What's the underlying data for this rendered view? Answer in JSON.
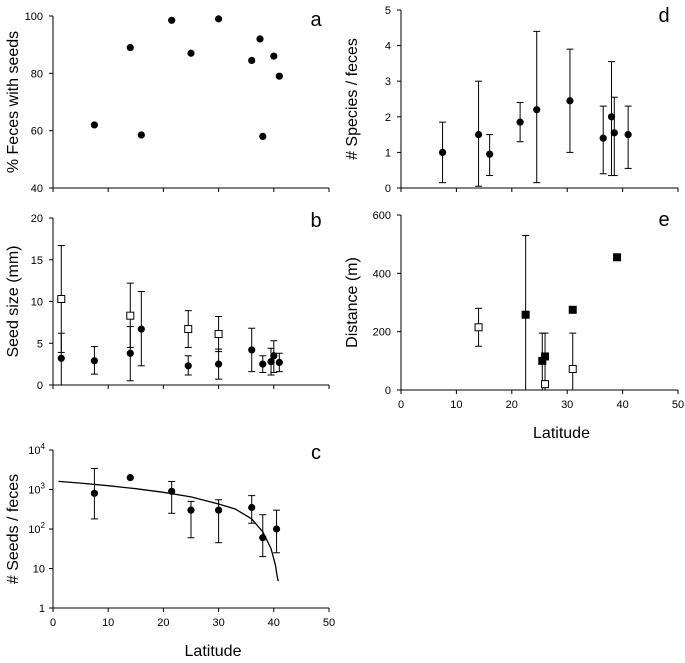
{
  "chart_data": [
    {
      "panel": "a",
      "type": "scatter",
      "ylabel": "% Feces with seeds",
      "xlim": [
        0,
        50
      ],
      "ylim": [
        40,
        100
      ],
      "y_ticks": [
        40,
        60,
        80,
        100
      ],
      "x_ticks": [],
      "points": [
        {
          "x": 7.5,
          "y": 62
        },
        {
          "x": 14,
          "y": 89
        },
        {
          "x": 16,
          "y": 58.5
        },
        {
          "x": 21.5,
          "y": 98.5
        },
        {
          "x": 25,
          "y": 87
        },
        {
          "x": 30,
          "y": 99
        },
        {
          "x": 36,
          "y": 84.5
        },
        {
          "x": 37.5,
          "y": 92
        },
        {
          "x": 38,
          "y": 58
        },
        {
          "x": 40,
          "y": 86
        },
        {
          "x": 41,
          "y": 79
        }
      ]
    },
    {
      "panel": "b",
      "type": "scatter",
      "ylabel": "Seed size (mm)",
      "xlim": [
        0,
        50
      ],
      "ylim": [
        0,
        20
      ],
      "y_ticks": [
        0,
        5,
        10,
        15,
        20
      ],
      "x_ticks": [],
      "series": [
        {
          "name": "filled",
          "marker": "circle",
          "points": [
            {
              "x": 1.5,
              "y": 3.2,
              "lo": 0,
              "hi": 6.2
            },
            {
              "x": 7.5,
              "y": 2.9,
              "lo": 1.3,
              "hi": 4.6
            },
            {
              "x": 14,
              "y": 3.8,
              "lo": 0.5,
              "hi": 7.0
            },
            {
              "x": 16,
              "y": 6.7,
              "lo": 2.3,
              "hi": 11.2
            },
            {
              "x": 24.5,
              "y": 2.3,
              "lo": 1.2,
              "hi": 3.5
            },
            {
              "x": 30,
              "y": 2.5,
              "lo": 0.7,
              "hi": 4.3
            },
            {
              "x": 36,
              "y": 4.2,
              "lo": 1.6,
              "hi": 6.8
            },
            {
              "x": 38,
              "y": 2.5,
              "lo": 1.5,
              "hi": 3.5
            },
            {
              "x": 39.5,
              "y": 2.8,
              "lo": 1.2,
              "hi": 4.4
            },
            {
              "x": 40,
              "y": 3.5,
              "lo": 1.5,
              "hi": 5.3
            },
            {
              "x": 41,
              "y": 2.7,
              "lo": 1.6,
              "hi": 3.8
            }
          ]
        },
        {
          "name": "open",
          "marker": "square",
          "points": [
            {
              "x": 1.5,
              "y": 10.3,
              "lo": 3.9,
              "hi": 16.7
            },
            {
              "x": 14,
              "y": 8.3,
              "lo": 4.5,
              "hi": 12.2
            },
            {
              "x": 24.5,
              "y": 6.7,
              "lo": 4.5,
              "hi": 8.9
            },
            {
              "x": 30,
              "y": 6.1,
              "lo": 4.0,
              "hi": 8.2
            }
          ]
        }
      ]
    },
    {
      "panel": "c",
      "type": "scatter",
      "xlabel": "Latitude",
      "ylabel": "# Seeds / feces",
      "y_scale": "log",
      "xlim": [
        0,
        50
      ],
      "ylim": [
        1,
        10000
      ],
      "x_ticks": [
        0,
        10,
        20,
        30,
        40,
        50
      ],
      "y_tick_labels": [
        "1",
        "10",
        "10^2",
        "10^3",
        "10^4"
      ],
      "points": [
        {
          "x": 7.5,
          "y": 800,
          "lo": 180,
          "hi": 3400
        },
        {
          "x": 14,
          "y": 2000
        },
        {
          "x": 21.5,
          "y": 900,
          "lo": 250,
          "hi": 1600
        },
        {
          "x": 25,
          "y": 300,
          "lo": 60,
          "hi": 500
        },
        {
          "x": 30,
          "y": 300,
          "lo": 45,
          "hi": 550
        },
        {
          "x": 36,
          "y": 350,
          "lo": 140,
          "hi": 700
        },
        {
          "x": 38,
          "y": 60,
          "lo": 20,
          "hi": 230
        },
        {
          "x": 40.5,
          "y": 100,
          "lo": 25,
          "hi": 300
        }
      ],
      "fit_curve": {
        "type": "line",
        "x": [
          1,
          5,
          10,
          15,
          20,
          25,
          30,
          33,
          36,
          38,
          39.5,
          40.3,
          40.6,
          40.8
        ],
        "y": [
          1600,
          1450,
          1250,
          1050,
          850,
          650,
          430,
          320,
          180,
          85,
          32,
          12,
          6.5,
          4.8
        ]
      }
    },
    {
      "panel": "d",
      "type": "scatter",
      "ylabel": "# Species / feces",
      "xlim": [
        0,
        50
      ],
      "ylim": [
        0,
        5
      ],
      "y_ticks": [
        0,
        1,
        2,
        3,
        4,
        5
      ],
      "x_ticks": [],
      "points": [
        {
          "x": 7.5,
          "y": 1.0,
          "lo": 0.15,
          "hi": 1.85
        },
        {
          "x": 14,
          "y": 1.5,
          "lo": 0.05,
          "hi": 3.0
        },
        {
          "x": 16,
          "y": 0.95,
          "lo": 0.35,
          "hi": 1.5
        },
        {
          "x": 21.5,
          "y": 1.85,
          "lo": 1.3,
          "hi": 2.4
        },
        {
          "x": 24.5,
          "y": 2.2,
          "lo": 0.15,
          "hi": 4.4
        },
        {
          "x": 30.5,
          "y": 2.45,
          "lo": 1.0,
          "hi": 3.9
        },
        {
          "x": 36.5,
          "y": 1.4,
          "lo": 0.4,
          "hi": 2.3
        },
        {
          "x": 38,
          "y": 2.0,
          "lo": 0.35,
          "hi": 3.55
        },
        {
          "x": 38.5,
          "y": 1.55,
          "lo": 0.35,
          "hi": 2.55
        },
        {
          "x": 41,
          "y": 1.5,
          "lo": 0.55,
          "hi": 2.3
        }
      ]
    },
    {
      "panel": "e",
      "type": "scatter",
      "xlabel": "Latitude",
      "ylabel": "Distance (m)",
      "xlim": [
        0,
        50
      ],
      "ylim": [
        0,
        600
      ],
      "x_ticks": [
        0,
        10,
        20,
        30,
        40,
        50
      ],
      "y_ticks": [
        0,
        200,
        400,
        600
      ],
      "series": [
        {
          "name": "filled",
          "marker": "square",
          "points": [
            {
              "x": 22.5,
              "y": 258,
              "lo": 0,
              "hi": 530
            },
            {
              "x": 25.5,
              "y": 100,
              "lo": 0,
              "hi": 195
            },
            {
              "x": 26,
              "y": 115
            },
            {
              "x": 31,
              "y": 275
            },
            {
              "x": 39,
              "y": 455
            }
          ]
        },
        {
          "name": "open",
          "marker": "square",
          "points": [
            {
              "x": 14,
              "y": 215,
              "lo": 150,
              "hi": 280
            },
            {
              "x": 26,
              "y": 20,
              "lo": 0,
              "hi": 195
            },
            {
              "x": 31,
              "y": 72,
              "lo": 0,
              "hi": 195
            }
          ]
        }
      ]
    }
  ]
}
